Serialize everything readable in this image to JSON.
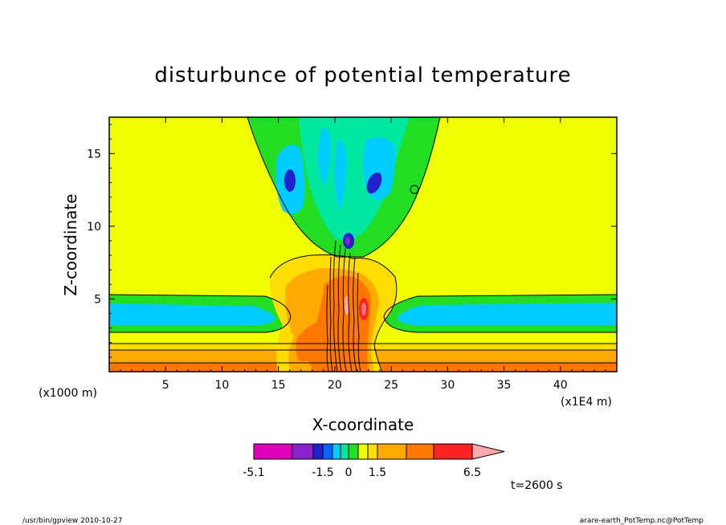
{
  "chart_data": {
    "type": "heatmap",
    "title": "disturbunce of potential temperature",
    "xlabel": "X-coordinate",
    "ylabel": "Z-coordinate",
    "x_units_label": "(x1E4 m)",
    "y_units_label": "(x1000 m)",
    "xlim": [
      0,
      45
    ],
    "ylim": [
      0,
      17.5
    ],
    "x_ticks": [
      5,
      10,
      15,
      20,
      25,
      30,
      35,
      40
    ],
    "y_ticks": [
      5,
      10,
      15
    ],
    "time_label": "t=2600 s",
    "colorbar": {
      "levels_shown": [
        "-5.1",
        "-1.5",
        "0",
        "1.5",
        "6.5"
      ],
      "level_values": [
        -5.1,
        -1.5,
        0,
        1.5,
        6.5
      ],
      "colors": [
        "#dd00bb",
        "#8822cc",
        "#2222cc",
        "#0066ff",
        "#00ccff",
        "#00e8a0",
        "#22dd22",
        "#f0ff00",
        "#ffdd00",
        "#ffaa00",
        "#ff7700",
        "#ff2222",
        "#ff7777",
        "#ffaaaa"
      ],
      "extend": "max"
    }
  },
  "footer": {
    "left": "/usr/bin/gpview   2010-10-27",
    "right": "arare-earth_PotTemp.nc@PotTemp"
  }
}
